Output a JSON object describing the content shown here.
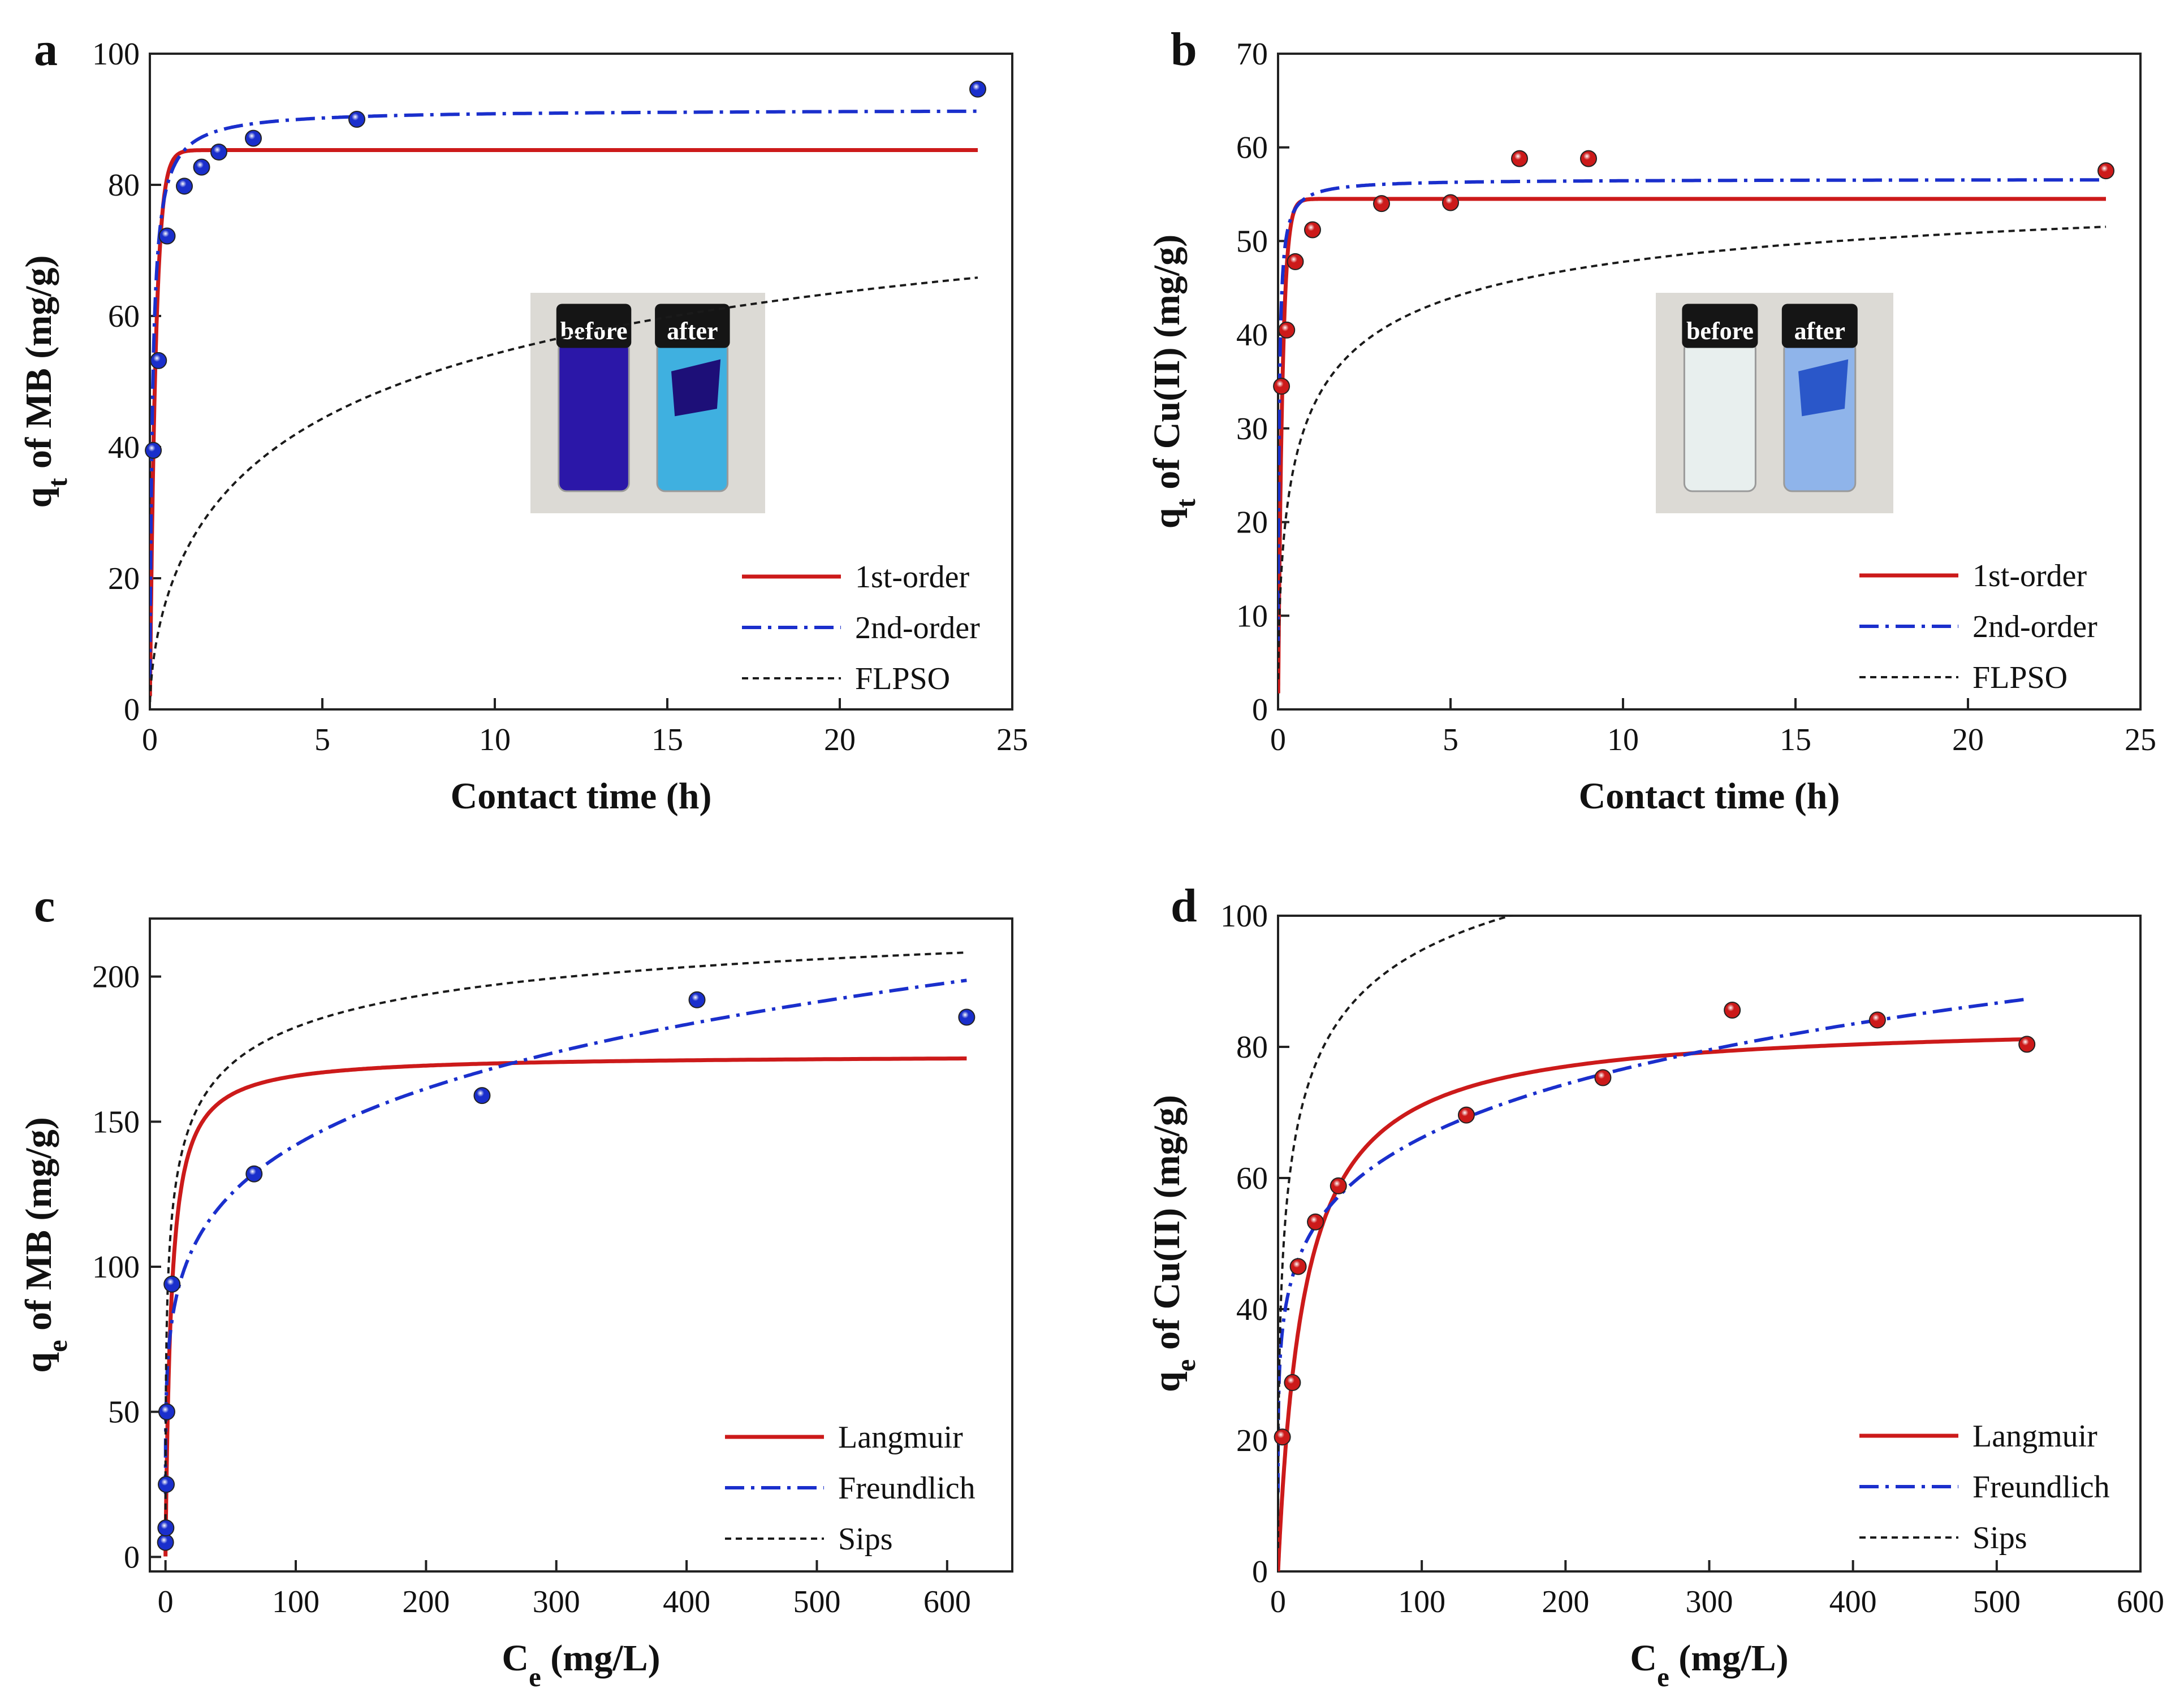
{
  "colors": {
    "red": "#cc1a1a",
    "blue": "#1a2fcc",
    "black": "#1a1a1a",
    "axis": "#222222"
  },
  "chart_data": [
    {
      "panel_label": "a",
      "type": "scatter+line",
      "xlabel": "Contact time (h)",
      "ylabel_main": "q",
      "ylabel_sub": "t",
      "ylabel_rest": " of MB (mg/g)",
      "xlim": [
        0,
        25
      ],
      "ylim": [
        0,
        100
      ],
      "xticks": [
        "0",
        "5",
        "10",
        "15",
        "20",
        "25"
      ],
      "yticks": [
        "0",
        "20",
        "40",
        "60",
        "80",
        "100"
      ],
      "points": {
        "x": [
          0.1,
          0.25,
          0.5,
          1,
          1.5,
          2,
          3,
          6,
          24
        ],
        "y": [
          39.5,
          53.2,
          72.2,
          79.8,
          82.7,
          85.0,
          87.1,
          90.0,
          94.6
        ],
        "color": "blue"
      },
      "series": [
        {
          "name": "1st-order",
          "model": "pfo",
          "params": {
            "qe": 85.3,
            "k": 6.0
          },
          "style": "solid",
          "color": "red"
        },
        {
          "name": "2nd-order",
          "model": "pso",
          "params": {
            "qe": 91.5,
            "k": 0.15
          },
          "style": "dashdot",
          "color": "blue"
        },
        {
          "name": "FLPSO",
          "model": "flpso",
          "params": {
            "qe": 95.5,
            "b": 0.33,
            "n": 0.6
          },
          "style": "dotted",
          "color": "black"
        }
      ],
      "inset": {
        "labels": [
          "before",
          "after"
        ],
        "style": "mb"
      }
    },
    {
      "panel_label": "b",
      "type": "scatter+line",
      "xlabel": "Contact time (h)",
      "ylabel_main": "q",
      "ylabel_sub": "t",
      "ylabel_rest": " of Cu(II) (mg/g)",
      "xlim": [
        0,
        25
      ],
      "ylim": [
        0,
        70
      ],
      "xticks": [
        "0",
        "5",
        "10",
        "15",
        "20",
        "25"
      ],
      "yticks": [
        "0",
        "10",
        "20",
        "30",
        "40",
        "50",
        "60",
        "70"
      ],
      "points": {
        "x": [
          0.1,
          0.25,
          0.5,
          1,
          3,
          5,
          7,
          9,
          24
        ],
        "y": [
          34.5,
          40.5,
          47.8,
          51.2,
          54.0,
          54.1,
          58.8,
          58.8,
          57.5
        ],
        "color": "red"
      },
      "series": [
        {
          "name": "1st-order",
          "model": "pfo",
          "params": {
            "qe": 54.5,
            "k": 8.0
          },
          "style": "solid",
          "color": "red"
        },
        {
          "name": "2nd-order",
          "model": "pso",
          "params": {
            "qe": 56.6,
            "k": 0.6
          },
          "style": "dashdot",
          "color": "blue"
        },
        {
          "name": "FLPSO",
          "model": "flpso",
          "params": {
            "qe": 59.0,
            "b": 1.2,
            "n": 0.55
          },
          "style": "dotted",
          "color": "black"
        }
      ],
      "inset": {
        "labels": [
          "before",
          "after"
        ],
        "style": "cu"
      }
    },
    {
      "panel_label": "c",
      "type": "scatter+line",
      "xlabel_main": "C",
      "xlabel_sub": "e",
      "xlabel_rest": " (mg/L)",
      "ylabel_main": "q",
      "ylabel_sub": "e",
      "ylabel_rest": " of MB (mg/g)",
      "xlim": [
        -12,
        650
      ],
      "ylim": [
        -5,
        220
      ],
      "xticks": [
        "0",
        "100",
        "200",
        "300",
        "400",
        "500",
        "600"
      ],
      "yticks": [
        "0",
        "50",
        "100",
        "150",
        "200"
      ],
      "points": {
        "x": [
          0,
          0.3,
          0.6,
          1,
          5,
          68,
          243,
          408,
          615
        ],
        "y": [
          5,
          10,
          25,
          50,
          94,
          132,
          159,
          192,
          186
        ],
        "color": "blue"
      },
      "series": [
        {
          "name": "Langmuir",
          "model": "langmuir",
          "params": {
            "qm": 173,
            "KL": 0.23
          },
          "style": "solid",
          "color": "red"
        },
        {
          "name": "Freundlich",
          "model": "freundlich",
          "params": {
            "KF": 60.5,
            "n": 5.4
          },
          "style": "dashdot",
          "color": "blue"
        },
        {
          "name": "Sips",
          "model": "sips",
          "params": {
            "qm": 240,
            "Ks": 0.18,
            "n": 0.4
          },
          "style": "dotted",
          "color": "black"
        }
      ]
    },
    {
      "panel_label": "d",
      "type": "scatter+line",
      "xlabel_main": "C",
      "xlabel_sub": "e",
      "xlabel_rest": " (mg/L)",
      "ylabel_main": "q",
      "ylabel_sub": "e",
      "ylabel_rest": " of Cu(II) (mg/g)",
      "xlim": [
        0,
        600
      ],
      "ylim": [
        0,
        100
      ],
      "xticks": [
        "0",
        "100",
        "200",
        "300",
        "400",
        "500",
        "600"
      ],
      "yticks": [
        "0",
        "20",
        "40",
        "60",
        "80",
        "100"
      ],
      "points": {
        "x": [
          3,
          10,
          14,
          26,
          42,
          131,
          226,
          316,
          417,
          521
        ],
        "y": [
          20.5,
          28.8,
          46.5,
          53.3,
          58.8,
          69.6,
          75.3,
          85.6,
          84.1,
          80.4
        ],
        "color": "red"
      },
      "series": [
        {
          "name": "Langmuir",
          "model": "langmuir",
          "params": {
            "qm": 84.0,
            "KL": 0.055
          },
          "style": "solid",
          "color": "red"
        },
        {
          "name": "Freundlich",
          "model": "freundlich",
          "params": {
            "KF": 30.5,
            "n": 5.95
          },
          "style": "dashdot",
          "color": "blue"
        },
        {
          "name": "Sips",
          "model": "sips",
          "params": {
            "qm": 130,
            "Ks": 0.09,
            "n": 0.45
          },
          "style": "dotted",
          "color": "black"
        }
      ]
    }
  ]
}
